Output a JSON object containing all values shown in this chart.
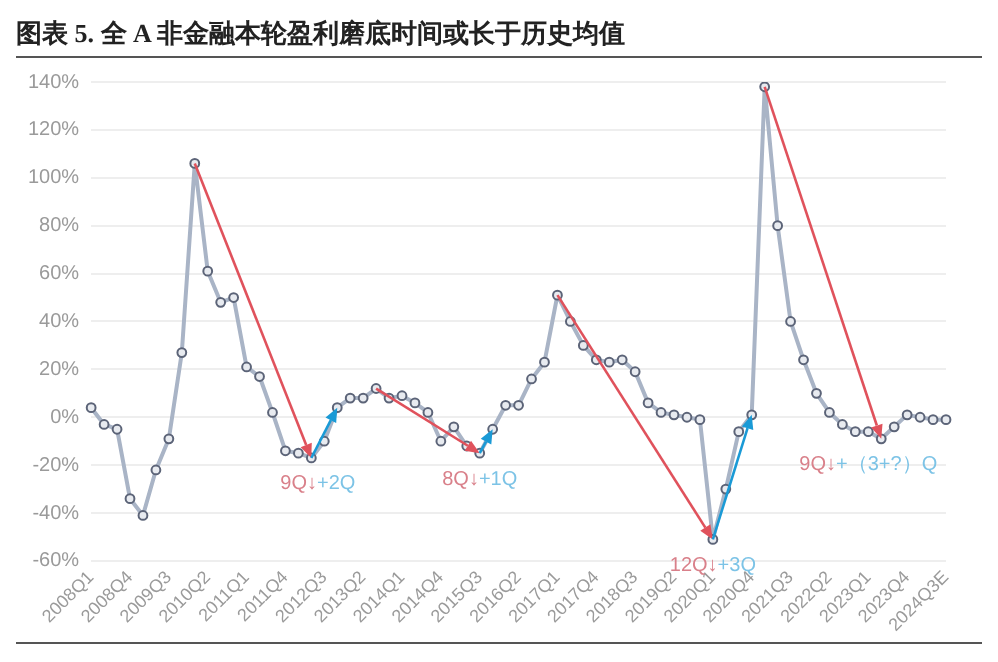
{
  "chart_data": {
    "type": "line",
    "title": "图表 5. 全 A 非金融本轮盈利磨底时间或长于历史均值",
    "categories": [
      "2008Q1",
      null,
      null,
      "2008Q4",
      null,
      null,
      "2009Q3",
      null,
      null,
      "2010Q2",
      null,
      null,
      "2011Q1",
      null,
      null,
      "2011Q4",
      null,
      null,
      "2012Q3",
      null,
      null,
      "2013Q2",
      null,
      null,
      "2014Q1",
      null,
      null,
      "2014Q4",
      null,
      null,
      "2015Q3",
      null,
      null,
      "2016Q2",
      null,
      null,
      "2017Q1",
      null,
      null,
      "2017Q4",
      null,
      null,
      "2018Q3",
      null,
      null,
      "2019Q2",
      null,
      null,
      "2020Q1",
      null,
      null,
      "2020Q4",
      null,
      null,
      "2021Q3",
      null,
      null,
      "2022Q2",
      null,
      null,
      "2023Q1",
      null,
      null,
      "2023Q4",
      null,
      null,
      "2024Q3E"
    ],
    "series": [
      {
        "color": "#a9b4c6",
        "values": [
          4,
          -3,
          -5,
          -34,
          -41,
          -22,
          -9,
          27,
          106,
          61,
          48,
          50,
          21,
          17,
          2,
          -14,
          -15,
          -17,
          -10,
          4,
          8,
          8,
          12,
          8,
          9,
          6,
          2,
          -10,
          -4,
          -12,
          -15,
          -5,
          5,
          5,
          16,
          23,
          51,
          40,
          30,
          24,
          23,
          24,
          19,
          6,
          2,
          1,
          0,
          -1,
          -51,
          -30,
          -6,
          1,
          138,
          80,
          40,
          24,
          10,
          2,
          -3,
          -6,
          -6,
          -9,
          -4,
          1,
          0,
          -1,
          -1
        ]
      }
    ],
    "ylim": [
      -60,
      140
    ],
    "yticks": [
      {
        "value": -60,
        "label": "-60%"
      },
      {
        "value": -40,
        "label": "-40%"
      },
      {
        "value": -20,
        "label": "-20%"
      },
      {
        "value": 0,
        "label": "0%"
      },
      {
        "value": 20,
        "label": "20%"
      },
      {
        "value": 40,
        "label": "40%"
      },
      {
        "value": 60,
        "label": "60%"
      },
      {
        "value": 80,
        "label": "80%"
      },
      {
        "value": 100,
        "label": "100%"
      },
      {
        "value": 120,
        "label": "120%"
      },
      {
        "value": 140,
        "label": "140%"
      }
    ],
    "grid": "y",
    "legend": false,
    "marker": "circle",
    "line_style": "solid",
    "annotations": [
      {
        "text": "9Q↓+2Q",
        "y": -17
      },
      {
        "text": "8Q↓+1Q",
        "x": "2015Q3",
        "y": -15
      },
      {
        "text": "12Q↓+3Q",
        "x": "2020Q1",
        "y": -51
      },
      {
        "text": "9Q↓+（3+?）Q",
        "y": -9
      }
    ]
  }
}
